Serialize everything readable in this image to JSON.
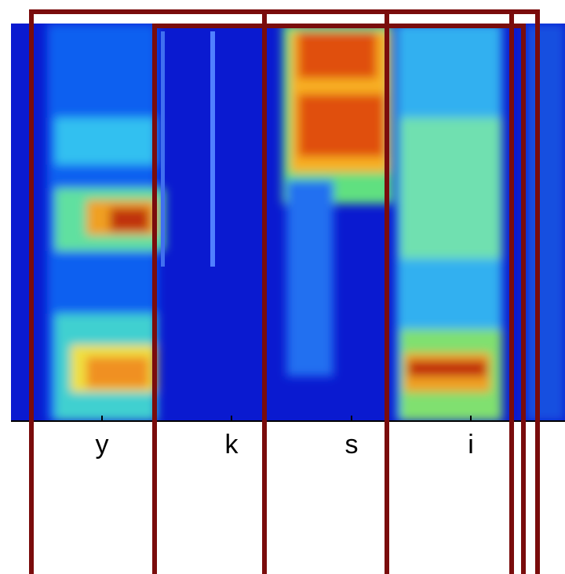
{
  "axis": {
    "labels": [
      "y",
      "k",
      "s",
      "i"
    ]
  }
}
